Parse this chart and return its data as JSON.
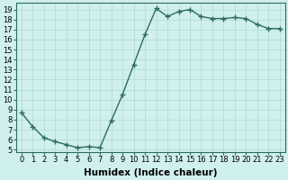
{
  "x": [
    0,
    1,
    2,
    3,
    4,
    5,
    6,
    7,
    8,
    9,
    10,
    11,
    12,
    13,
    14,
    15,
    16,
    17,
    18,
    19,
    20,
    21,
    22,
    23
  ],
  "y": [
    8.7,
    7.3,
    6.2,
    5.8,
    5.5,
    5.2,
    5.3,
    5.2,
    7.9,
    10.5,
    13.5,
    16.5,
    19.1,
    18.3,
    18.8,
    19.0,
    18.3,
    18.1,
    18.1,
    18.2,
    18.1,
    17.5,
    17.1,
    17.1
  ],
  "line_color": "#2e6b5e",
  "marker": "+",
  "marker_size": 4,
  "bg_color": "#cff0ee",
  "grid_color": "#b0d8d5",
  "xlabel": "Humidex (Indice chaleur)",
  "ylabel_ticks": [
    5,
    6,
    7,
    8,
    9,
    10,
    11,
    12,
    13,
    14,
    15,
    16,
    17,
    18,
    19
  ],
  "ylim": [
    4.8,
    19.7
  ],
  "xlim": [
    -0.5,
    23.5
  ],
  "tick_fontsize": 6,
  "xlabel_fontsize": 7.5,
  "linewidth": 1.0,
  "spine_color": "#2e6b5e"
}
